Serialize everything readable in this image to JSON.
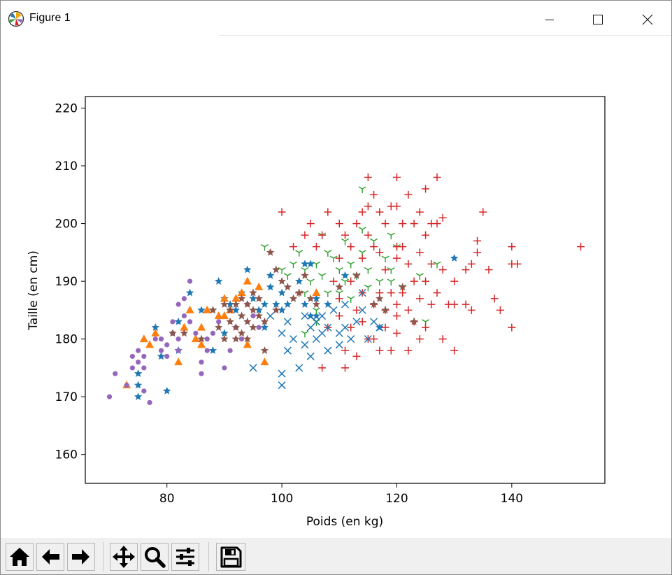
{
  "window": {
    "title": "Figure 1"
  },
  "toolbar": {
    "buttons": [
      {
        "name": "home-button",
        "icon": "home-icon"
      },
      {
        "name": "back-button",
        "icon": "arrow-left-icon"
      },
      {
        "name": "forward-button",
        "icon": "arrow-right-icon"
      },
      {
        "name": "pan-button",
        "icon": "move-icon"
      },
      {
        "name": "zoom-button",
        "icon": "magnifier-icon"
      },
      {
        "name": "configure-subplots-button",
        "icon": "sliders-icon"
      },
      {
        "name": "save-button",
        "icon": "floppy-disk-icon"
      }
    ]
  },
  "chart_data": {
    "type": "scatter",
    "title": "",
    "xlabel": "Poids (en kg)",
    "ylabel": "Taille (en cm)",
    "xlim": [
      65.8,
      156.2
    ],
    "ylim": [
      155,
      222
    ],
    "xticks": [
      80,
      100,
      120,
      140
    ],
    "yticks": [
      160,
      170,
      180,
      190,
      200,
      210,
      220
    ],
    "grid": false,
    "legend": "none",
    "series": [
      {
        "marker": "star",
        "color": "#1f77b4",
        "points": [
          [
            75,
            170
          ],
          [
            75,
            172
          ],
          [
            75,
            174
          ],
          [
            78,
            182
          ],
          [
            79,
            177
          ],
          [
            80,
            171
          ],
          [
            82,
            183
          ],
          [
            82,
            178
          ],
          [
            84,
            188
          ],
          [
            86,
            185
          ],
          [
            88,
            178
          ],
          [
            88,
            185
          ],
          [
            89,
            190
          ],
          [
            90,
            187
          ],
          [
            90,
            181
          ],
          [
            91,
            186
          ],
          [
            92,
            185
          ],
          [
            93,
            184
          ],
          [
            93,
            188
          ],
          [
            94,
            192
          ],
          [
            95,
            187
          ],
          [
            96,
            185
          ],
          [
            97,
            186
          ],
          [
            97,
            182
          ],
          [
            98,
            189
          ],
          [
            98,
            191
          ],
          [
            99,
            186
          ],
          [
            100,
            188
          ],
          [
            100,
            185
          ],
          [
            101,
            186
          ],
          [
            103,
            190
          ],
          [
            104,
            186
          ],
          [
            104,
            193
          ],
          [
            105,
            193
          ],
          [
            105,
            184
          ],
          [
            106,
            187
          ],
          [
            106,
            184
          ],
          [
            108,
            186
          ],
          [
            111,
            191
          ],
          [
            117,
            182
          ],
          [
            130,
            194
          ]
        ]
      },
      {
        "marker": "triangle",
        "color": "#ff7f0e",
        "points": [
          [
            73,
            172
          ],
          [
            76,
            180
          ],
          [
            77,
            179
          ],
          [
            78,
            181
          ],
          [
            82,
            176
          ],
          [
            83,
            182
          ],
          [
            84,
            185
          ],
          [
            85,
            180
          ],
          [
            86,
            182
          ],
          [
            86,
            179
          ],
          [
            87,
            185
          ],
          [
            89,
            184
          ],
          [
            90,
            187
          ],
          [
            90,
            184
          ],
          [
            91,
            185
          ],
          [
            92,
            187
          ],
          [
            93,
            188
          ],
          [
            94,
            190
          ],
          [
            94,
            179
          ],
          [
            96,
            189
          ],
          [
            97,
            176
          ],
          [
            106,
            188
          ]
        ]
      },
      {
        "marker": "tri_down",
        "color": "#2ca02c",
        "points": [
          [
            97,
            196
          ],
          [
            100,
            192
          ],
          [
            101,
            191
          ],
          [
            102,
            193
          ],
          [
            103,
            195
          ],
          [
            104,
            192
          ],
          [
            104,
            188
          ],
          [
            105,
            190
          ],
          [
            106,
            193
          ],
          [
            106,
            185
          ],
          [
            107,
            191
          ],
          [
            107,
            198
          ],
          [
            108,
            195
          ],
          [
            108,
            188
          ],
          [
            109,
            194
          ],
          [
            110,
            192
          ],
          [
            110,
            188
          ],
          [
            111,
            190
          ],
          [
            111,
            197
          ],
          [
            112,
            193
          ],
          [
            112,
            187
          ],
          [
            113,
            191
          ],
          [
            114,
            195
          ],
          [
            114,
            206
          ],
          [
            114,
            199
          ],
          [
            115,
            192
          ],
          [
            115,
            189
          ],
          [
            116,
            197
          ],
          [
            117,
            190
          ],
          [
            118,
            194
          ],
          [
            119,
            192
          ],
          [
            119,
            198
          ],
          [
            119,
            190
          ],
          [
            120,
            196
          ],
          [
            121,
            189
          ],
          [
            124,
            191
          ],
          [
            125,
            183
          ],
          [
            127,
            193
          ],
          [
            104,
            181
          ],
          [
            106,
            183
          ]
        ]
      },
      {
        "marker": "plus",
        "color": "#d62728",
        "points": [
          [
            100,
            202
          ],
          [
            102,
            196
          ],
          [
            103,
            188
          ],
          [
            104,
            198
          ],
          [
            105,
            200
          ],
          [
            106,
            196
          ],
          [
            107,
            198
          ],
          [
            107,
            175
          ],
          [
            108,
            202
          ],
          [
            108,
            182
          ],
          [
            109,
            190
          ],
          [
            110,
            200
          ],
          [
            110,
            194
          ],
          [
            110,
            187
          ],
          [
            110,
            184
          ],
          [
            111,
            198
          ],
          [
            111,
            178
          ],
          [
            111,
            175
          ],
          [
            112,
            196
          ],
          [
            112,
            182
          ],
          [
            112,
            190
          ],
          [
            113,
            200
          ],
          [
            113,
            185
          ],
          [
            113,
            177
          ],
          [
            114,
            202
          ],
          [
            114,
            194
          ],
          [
            114,
            188
          ],
          [
            114,
            183
          ],
          [
            115,
            208
          ],
          [
            115,
            203
          ],
          [
            115,
            198
          ],
          [
            115,
            180
          ],
          [
            116,
            205
          ],
          [
            116,
            196
          ],
          [
            116,
            186
          ],
          [
            116,
            180
          ],
          [
            117,
            202
          ],
          [
            117,
            195
          ],
          [
            117,
            188
          ],
          [
            117,
            178
          ],
          [
            118,
            200
          ],
          [
            118,
            192
          ],
          [
            118,
            185
          ],
          [
            118,
            182
          ],
          [
            119,
            203
          ],
          [
            119,
            188
          ],
          [
            119,
            178
          ],
          [
            120,
            208
          ],
          [
            120,
            203
          ],
          [
            120,
            196
          ],
          [
            120,
            194
          ],
          [
            120,
            186
          ],
          [
            120,
            184
          ],
          [
            120,
            181
          ],
          [
            121,
            200
          ],
          [
            121,
            196
          ],
          [
            121,
            188
          ],
          [
            122,
            205
          ],
          [
            122,
            193
          ],
          [
            122,
            185
          ],
          [
            122,
            178
          ],
          [
            123,
            200
          ],
          [
            123,
            190
          ],
          [
            123,
            183
          ],
          [
            124,
            202
          ],
          [
            124,
            195
          ],
          [
            124,
            187
          ],
          [
            124,
            180
          ],
          [
            125,
            206
          ],
          [
            125,
            198
          ],
          [
            125,
            190
          ],
          [
            125,
            182
          ],
          [
            126,
            200
          ],
          [
            126,
            193
          ],
          [
            126,
            186
          ],
          [
            127,
            208
          ],
          [
            127,
            200
          ],
          [
            127,
            188
          ],
          [
            128,
            201
          ],
          [
            128,
            192
          ],
          [
            128,
            180
          ],
          [
            129,
            186
          ],
          [
            130,
            190
          ],
          [
            130,
            186
          ],
          [
            130,
            178
          ],
          [
            132,
            192
          ],
          [
            132,
            186
          ],
          [
            133,
            193
          ],
          [
            133,
            185
          ],
          [
            134,
            197
          ],
          [
            134,
            195
          ],
          [
            135,
            202
          ],
          [
            136,
            192
          ],
          [
            137,
            187
          ],
          [
            138,
            185
          ],
          [
            140,
            196
          ],
          [
            140,
            193
          ],
          [
            140,
            182
          ],
          [
            141,
            193
          ],
          [
            152,
            196
          ]
        ]
      },
      {
        "marker": "x",
        "color": "#1f77b4",
        "points": [
          [
            95,
            175
          ],
          [
            98,
            184
          ],
          [
            100,
            174
          ],
          [
            100,
            172
          ],
          [
            100,
            181
          ],
          [
            101,
            183
          ],
          [
            101,
            178
          ],
          [
            102,
            180
          ],
          [
            103,
            175
          ],
          [
            104,
            179
          ],
          [
            104,
            184
          ],
          [
            105,
            177
          ],
          [
            105,
            182
          ],
          [
            106,
            183
          ],
          [
            106,
            180
          ],
          [
            107,
            181
          ],
          [
            107,
            184
          ],
          [
            108,
            178
          ],
          [
            108,
            182
          ],
          [
            109,
            185
          ],
          [
            110,
            181
          ],
          [
            110,
            179
          ],
          [
            111,
            182
          ],
          [
            111,
            186
          ],
          [
            112,
            180
          ],
          [
            113,
            183
          ],
          [
            114,
            188
          ],
          [
            114,
            185
          ],
          [
            115,
            180
          ],
          [
            116,
            183
          ],
          [
            117,
            182
          ]
        ]
      },
      {
        "marker": "circle",
        "color": "#9467bd",
        "points": [
          [
            70,
            170
          ],
          [
            71,
            174
          ],
          [
            73,
            172
          ],
          [
            74,
            175
          ],
          [
            74,
            177
          ],
          [
            75,
            176
          ],
          [
            75,
            178
          ],
          [
            76,
            177
          ],
          [
            76,
            175
          ],
          [
            76,
            171
          ],
          [
            77,
            169
          ],
          [
            78,
            180
          ],
          [
            79,
            178
          ],
          [
            79,
            180
          ],
          [
            80,
            179
          ],
          [
            80,
            177
          ],
          [
            81,
            183
          ],
          [
            81,
            181
          ],
          [
            82,
            178
          ],
          [
            82,
            186
          ],
          [
            82,
            180
          ],
          [
            83,
            184
          ],
          [
            83,
            187
          ],
          [
            84,
            190
          ],
          [
            84,
            183
          ],
          [
            85,
            181
          ],
          [
            86,
            176
          ],
          [
            86,
            174
          ],
          [
            87,
            180
          ],
          [
            87,
            178
          ],
          [
            88,
            181
          ],
          [
            89,
            183
          ],
          [
            90,
            175
          ],
          [
            91,
            178
          ],
          [
            92,
            182
          ],
          [
            93,
            180
          ],
          [
            94,
            186
          ],
          [
            95,
            184
          ],
          [
            96,
            182
          ]
        ]
      },
      {
        "marker": "star",
        "color": "#8c564b",
        "points": [
          [
            81,
            181
          ],
          [
            83,
            181
          ],
          [
            86,
            180
          ],
          [
            88,
            185
          ],
          [
            89,
            182
          ],
          [
            90,
            186
          ],
          [
            90,
            180
          ],
          [
            91,
            183
          ],
          [
            91,
            185
          ],
          [
            92,
            186
          ],
          [
            92,
            182
          ],
          [
            92,
            180
          ],
          [
            93,
            187
          ],
          [
            93,
            184
          ],
          [
            93,
            181
          ],
          [
            94,
            186
          ],
          [
            94,
            183
          ],
          [
            94,
            180
          ],
          [
            95,
            188
          ],
          [
            95,
            185
          ],
          [
            95,
            182
          ],
          [
            96,
            187
          ],
          [
            96,
            184
          ],
          [
            97,
            183
          ],
          [
            97,
            178
          ],
          [
            98,
            195
          ],
          [
            99,
            185
          ],
          [
            99,
            192
          ],
          [
            100,
            190
          ],
          [
            101,
            189
          ],
          [
            102,
            187
          ],
          [
            103,
            188
          ],
          [
            104,
            191
          ],
          [
            105,
            187
          ],
          [
            106,
            186
          ],
          [
            110,
            189
          ],
          [
            113,
            191
          ],
          [
            116,
            186
          ],
          [
            117,
            187
          ],
          [
            118,
            185
          ],
          [
            121,
            189
          ],
          [
            123,
            183
          ]
        ]
      }
    ]
  }
}
